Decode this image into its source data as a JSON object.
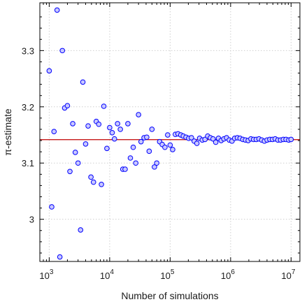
{
  "chart_data": {
    "type": "scatter",
    "title": "",
    "xlabel": "Number of simulations",
    "ylabel": "π-estimate",
    "x_scale": "log",
    "xlim": [
      700,
      14000000
    ],
    "ylim": [
      2.925,
      3.385
    ],
    "grid": true,
    "x_ticks": [
      {
        "value": 1000,
        "base": "10",
        "exp": "3"
      },
      {
        "value": 10000,
        "base": "10",
        "exp": "4"
      },
      {
        "value": 100000,
        "base": "10",
        "exp": "5"
      },
      {
        "value": 1000000,
        "base": "10",
        "exp": "6"
      },
      {
        "value": 10000000,
        "base": "10",
        "exp": "7"
      }
    ],
    "y_ticks": [
      {
        "value": 3.0,
        "label": "3"
      },
      {
        "value": 3.1,
        "label": "3.1"
      },
      {
        "value": 3.2,
        "label": "3.2"
      },
      {
        "value": 3.3,
        "label": "3.3"
      }
    ],
    "reference_line": {
      "y": 3.14159,
      "color": "#c00000"
    },
    "marker_color": "#0000ff",
    "marker_fill": "#c8c8ff",
    "series": [
      {
        "points": [
          [
            1000,
            3.264
          ],
          [
            1100,
            3.022
          ],
          [
            1200,
            3.156
          ],
          [
            1350,
            3.372
          ],
          [
            1500,
            2.933
          ],
          [
            1650,
            3.3
          ],
          [
            1800,
            3.198
          ],
          [
            2000,
            3.202
          ],
          [
            2200,
            3.085
          ],
          [
            2450,
            3.17
          ],
          [
            2700,
            3.119
          ],
          [
            3000,
            3.1
          ],
          [
            3300,
            2.981
          ],
          [
            3600,
            3.244
          ],
          [
            4000,
            3.134
          ],
          [
            4400,
            3.166
          ],
          [
            4900,
            3.075
          ],
          [
            5400,
            3.066
          ],
          [
            6000,
            3.174
          ],
          [
            6600,
            3.169
          ],
          [
            7300,
            3.062
          ],
          [
            8000,
            3.201
          ],
          [
            9000,
            3.126
          ],
          [
            10000,
            3.163
          ],
          [
            11000,
            3.154
          ],
          [
            12000,
            3.143
          ],
          [
            13500,
            3.17
          ],
          [
            15000,
            3.16
          ],
          [
            16500,
            3.089
          ],
          [
            18000,
            3.089
          ],
          [
            20000,
            3.17
          ],
          [
            22000,
            3.109
          ],
          [
            24500,
            3.128
          ],
          [
            27000,
            3.1
          ],
          [
            30000,
            3.186
          ],
          [
            33000,
            3.138
          ],
          [
            37000,
            3.145
          ],
          [
            41000,
            3.146
          ],
          [
            45000,
            3.121
          ],
          [
            50000,
            3.16
          ],
          [
            55000,
            3.093
          ],
          [
            60000,
            3.1
          ],
          [
            67000,
            3.138
          ],
          [
            74000,
            3.133
          ],
          [
            82000,
            3.128
          ],
          [
            91000,
            3.15
          ],
          [
            100000,
            3.132
          ],
          [
            110000,
            3.124
          ],
          [
            122000,
            3.151
          ],
          [
            135000,
            3.152
          ],
          [
            150000,
            3.15
          ],
          [
            165000,
            3.148
          ],
          [
            183000,
            3.146
          ],
          [
            203000,
            3.144
          ],
          [
            225000,
            3.145
          ],
          [
            250000,
            3.139
          ],
          [
            277000,
            3.135
          ],
          [
            307000,
            3.144
          ],
          [
            340000,
            3.141
          ],
          [
            377000,
            3.142
          ],
          [
            418000,
            3.148
          ],
          [
            463000,
            3.145
          ],
          [
            513000,
            3.143
          ],
          [
            568000,
            3.137
          ],
          [
            630000,
            3.144
          ],
          [
            698000,
            3.14
          ],
          [
            774000,
            3.143
          ],
          [
            858000,
            3.145
          ],
          [
            951000,
            3.141
          ],
          [
            1054000,
            3.139
          ],
          [
            1168000,
            3.144
          ],
          [
            1295000,
            3.145
          ],
          [
            1435000,
            3.144
          ],
          [
            1591000,
            3.142
          ],
          [
            1763000,
            3.141
          ],
          [
            1954000,
            3.14
          ],
          [
            2166000,
            3.143
          ],
          [
            2400000,
            3.142
          ],
          [
            2660000,
            3.142
          ],
          [
            2948000,
            3.143
          ],
          [
            3268000,
            3.141
          ],
          [
            3622000,
            3.139
          ],
          [
            4015000,
            3.141
          ],
          [
            4450000,
            3.142
          ],
          [
            4932000,
            3.142
          ],
          [
            5467000,
            3.143
          ],
          [
            6059000,
            3.141
          ],
          [
            6716000,
            3.141
          ],
          [
            7443000,
            3.142
          ],
          [
            8250000,
            3.142
          ],
          [
            9144000,
            3.141
          ],
          [
            10000000,
            3.142
          ]
        ]
      }
    ]
  }
}
